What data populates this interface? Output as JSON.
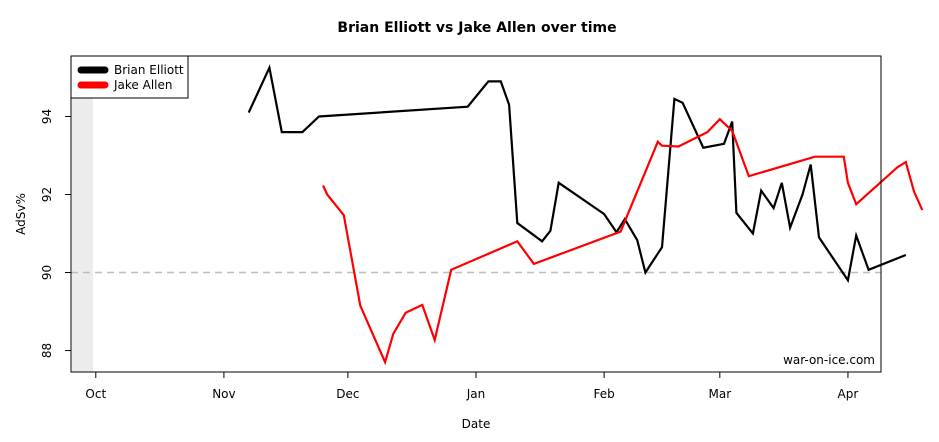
{
  "chart_data": {
    "type": "line",
    "title": "Brian Elliott vs Jake Allen over time",
    "xlabel": "Date",
    "ylabel": "AdSv%",
    "x_ticks": [
      "Oct",
      "Nov",
      "Dec",
      "Jan",
      "Feb",
      "Mar",
      "Apr"
    ],
    "y_ticks": [
      88,
      90,
      92,
      94
    ],
    "xlim": [
      "2013-09-25",
      "2014-04-09"
    ],
    "ylim": [
      87.45,
      95.55
    ],
    "reference_line": 90,
    "grid": false,
    "legend_position": "top-left",
    "watermark": "war-on-ice.com",
    "series": [
      {
        "name": "Brian Elliott",
        "color": "#000000",
        "points": [
          [
            "2013-11-07",
            94.1
          ],
          [
            "2013-11-12",
            95.25
          ],
          [
            "2013-11-15",
            93.6
          ],
          [
            "2013-11-20",
            93.6
          ],
          [
            "2013-11-24",
            94.0
          ],
          [
            "2013-12-30",
            94.25
          ],
          [
            "2014-01-04",
            94.9
          ],
          [
            "2014-01-07",
            94.9
          ],
          [
            "2014-01-09",
            94.3
          ],
          [
            "2014-01-11",
            91.27
          ],
          [
            "2014-01-17",
            90.8
          ],
          [
            "2014-01-19",
            91.07
          ],
          [
            "2014-01-21",
            92.3
          ],
          [
            "2014-02-01",
            91.5
          ],
          [
            "2014-02-04",
            91.03
          ],
          [
            "2014-02-06",
            91.37
          ],
          [
            "2014-02-09",
            90.83
          ],
          [
            "2014-02-11",
            90.0
          ],
          [
            "2014-02-15",
            90.65
          ],
          [
            "2014-02-18",
            94.45
          ],
          [
            "2014-02-20",
            94.35
          ],
          [
            "2014-02-25",
            93.2
          ],
          [
            "2014-03-02",
            93.3
          ],
          [
            "2014-03-04",
            93.87
          ],
          [
            "2014-03-05",
            91.53
          ],
          [
            "2014-03-09",
            91.0
          ],
          [
            "2014-03-11",
            92.1
          ],
          [
            "2014-03-14",
            91.65
          ],
          [
            "2014-03-16",
            92.3
          ],
          [
            "2014-03-18",
            91.15
          ],
          [
            "2014-03-21",
            92.0
          ],
          [
            "2014-03-23",
            92.77
          ],
          [
            "2014-03-25",
            90.9
          ],
          [
            "2014-04-01",
            89.8
          ],
          [
            "2014-04-03",
            90.95
          ],
          [
            "2014-04-06",
            90.07
          ],
          [
            "2014-04-15",
            90.45
          ]
        ]
      },
      {
        "name": "Jake Allen",
        "color": "#ff0000",
        "points": [
          [
            "2013-11-25",
            92.23
          ],
          [
            "2013-11-26",
            92.0
          ],
          [
            "2013-11-30",
            91.47
          ],
          [
            "2013-12-04",
            89.15
          ],
          [
            "2013-12-10",
            87.7
          ],
          [
            "2013-12-12",
            88.43
          ],
          [
            "2013-12-15",
            88.97
          ],
          [
            "2013-12-19",
            89.17
          ],
          [
            "2013-12-22",
            88.27
          ],
          [
            "2013-12-26",
            90.07
          ],
          [
            "2014-01-11",
            90.8
          ],
          [
            "2014-01-15",
            90.22
          ],
          [
            "2014-02-05",
            91.05
          ],
          [
            "2014-02-14",
            93.35
          ],
          [
            "2014-02-15",
            93.25
          ],
          [
            "2014-02-19",
            93.23
          ],
          [
            "2014-02-26",
            93.6
          ],
          [
            "2014-02-29",
            93.93
          ],
          [
            "2014-03-04",
            93.63
          ],
          [
            "2014-03-08",
            92.47
          ],
          [
            "2014-03-24",
            92.97
          ],
          [
            "2014-03-31",
            92.97
          ],
          [
            "2014-04-01",
            92.3
          ],
          [
            "2014-04-03",
            91.75
          ],
          [
            "2014-04-13",
            92.7
          ],
          [
            "2014-04-15",
            92.83
          ],
          [
            "2014-04-17",
            92.07
          ],
          [
            "2014-04-19",
            91.6
          ]
        ]
      }
    ]
  }
}
